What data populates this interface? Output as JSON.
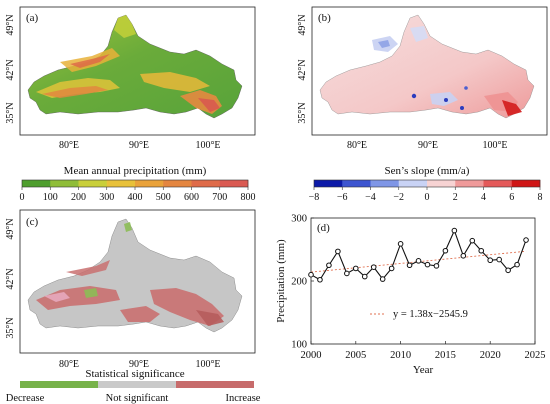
{
  "panels": {
    "a": {
      "label": "(a)",
      "lat_ticks": [
        "49°N",
        "42°N",
        "35°N"
      ],
      "lon_ticks": [
        "80°E",
        "90°E",
        "100°E"
      ]
    },
    "b": {
      "label": "(b)",
      "lat_ticks": [
        "49°N",
        "42°N",
        "35°N"
      ],
      "lon_ticks": [
        "80°E",
        "90°E",
        "100°E"
      ]
    },
    "c": {
      "label": "(c)",
      "lat_ticks": [
        "49°N",
        "42°N",
        "35°N"
      ],
      "lon_ticks": [
        "80°E",
        "90°E",
        "100°E"
      ]
    }
  },
  "colorbars": {
    "precip": {
      "title": "Mean annual precipitation (mm)",
      "ticks": [
        "0",
        "100",
        "200",
        "300",
        "400",
        "500",
        "600",
        "700",
        "800"
      ],
      "colors": [
        "#4e9e2e",
        "#8fbd38",
        "#c9cf3a",
        "#e8c13a",
        "#e9a23a",
        "#e48640",
        "#df6b49",
        "#da5a52"
      ]
    },
    "sens": {
      "title": "Sen’s slope (mm/a)",
      "ticks": [
        "−8",
        "−6",
        "−4",
        "−2",
        "0",
        "2",
        "4",
        "6",
        "8"
      ],
      "colors": [
        "#0c1aa8",
        "#3d55d0",
        "#7f96e6",
        "#c9d3f5",
        "#f7d3d3",
        "#ef9a9a",
        "#e45a5a",
        "#cf1616"
      ]
    },
    "significance": {
      "title": "Statistical significance",
      "labels": [
        "Decrease",
        "Not significant",
        "Increase"
      ],
      "colors": [
        "#77b24a",
        "#c9c9c9",
        "#c76b6b"
      ]
    }
  },
  "chart_data": {
    "type": "line",
    "panel_label": "(d)",
    "xlabel": "Year",
    "ylabel": "Precipitation (mm)",
    "xlim": [
      2000,
      2025
    ],
    "ylim": [
      100,
      300
    ],
    "x_ticks": [
      "2000",
      "2005",
      "2010",
      "2015",
      "2020",
      "2025"
    ],
    "y_ticks": [
      "100",
      "200",
      "300"
    ],
    "x": [
      2000,
      2001,
      2002,
      2003,
      2004,
      2005,
      2006,
      2007,
      2008,
      2009,
      2010,
      2011,
      2012,
      2013,
      2014,
      2015,
      2016,
      2017,
      2018,
      2019,
      2020,
      2021,
      2022,
      2023,
      2024
    ],
    "series": [
      {
        "values": [
          210,
          202,
          225,
          247,
          212,
          220,
          207,
          222,
          203,
          220,
          259,
          225,
          232,
          226,
          224,
          248,
          280,
          240,
          264,
          248,
          233,
          234,
          217,
          226,
          265
        ],
        "color": "#111111"
      }
    ],
    "trend": {
      "label": "y = 1.38x−2545.9",
      "slope": 1.38,
      "intercept": -2545.9,
      "color": "#e07050"
    }
  }
}
